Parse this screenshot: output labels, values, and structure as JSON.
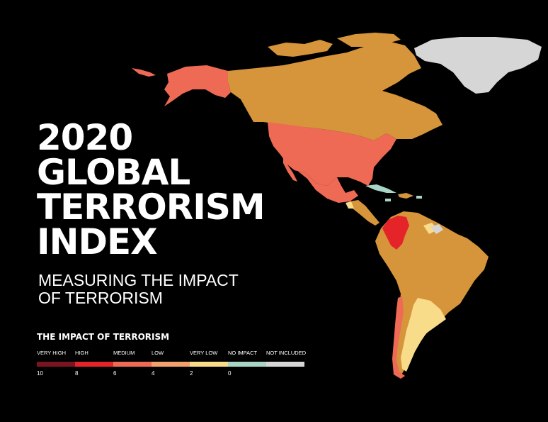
{
  "title": {
    "lines": [
      "2020",
      "GLOBAL",
      "TERRORISM",
      "INDEX"
    ]
  },
  "subtitle": {
    "lines": [
      "MEASURING THE IMPACT",
      "OF TERRORISM"
    ]
  },
  "legend": {
    "title": "THE IMPACT OF TERRORISM",
    "categories": [
      {
        "label": "VERY HIGH",
        "color": "#7a1420"
      },
      {
        "label": "HIGH",
        "color": "#e5242a"
      },
      {
        "label": "MEDIUM",
        "color": "#ee6a55"
      },
      {
        "label": "LOW",
        "color": "#f4a06b"
      },
      {
        "label": "VERY LOW",
        "color": "#f8dc8a"
      },
      {
        "label": "NO IMPACT",
        "color": "#a8d5c6"
      },
      {
        "label": "NOT INCLUDED",
        "color": "#d6d6d6"
      }
    ],
    "ticks": [
      "10",
      "8",
      "6",
      "4",
      "2",
      "0"
    ]
  },
  "map": {
    "colors": {
      "background": "#000000",
      "canada_south_america": "#d6953a",
      "usa_alaska_mexico": "#ee6a55",
      "colombia": "#e5242a",
      "greenland": "#d6d6d6",
      "very_low": "#f8dc8a",
      "no_impact": "#a8d5c6",
      "chile": "#ee6a55"
    }
  }
}
